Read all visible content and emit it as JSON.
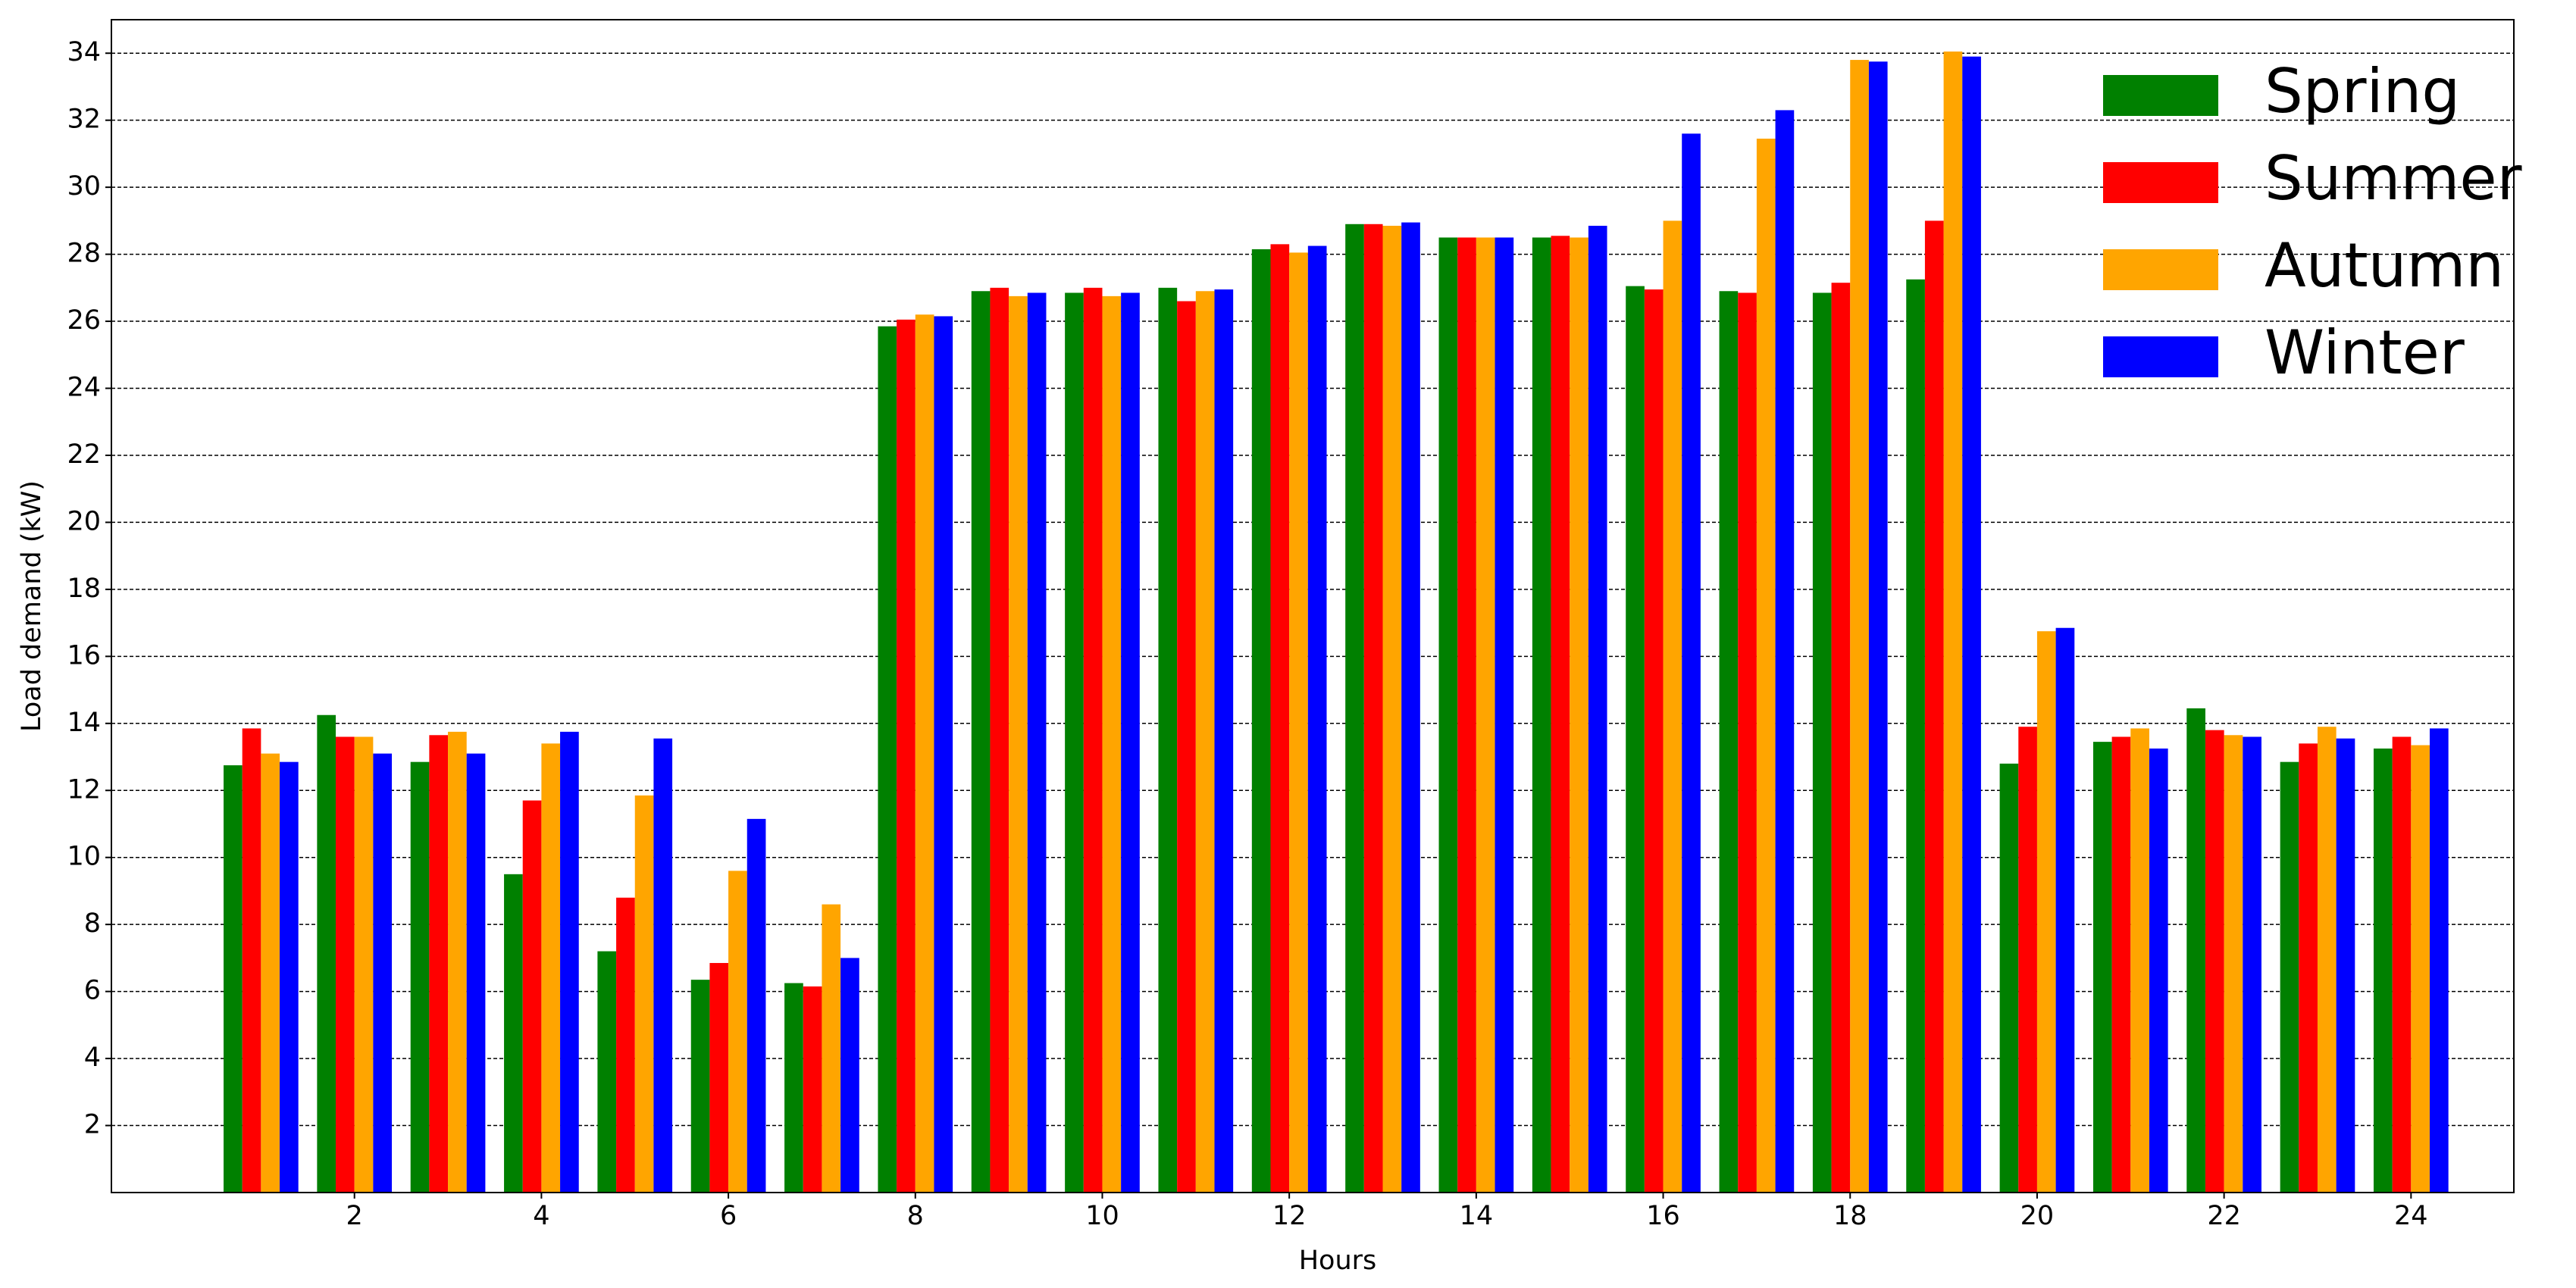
{
  "chart_data": {
    "type": "bar",
    "x_label": "Hours",
    "y_label": "Load demand (kW)",
    "x": [
      1,
      2,
      3,
      4,
      5,
      6,
      7,
      8,
      9,
      10,
      11,
      12,
      13,
      14,
      15,
      16,
      17,
      18,
      19,
      20,
      21,
      22,
      23,
      24
    ],
    "xlim": [
      -0.6,
      25.1
    ],
    "xticks": [
      2,
      4,
      6,
      8,
      10,
      12,
      14,
      16,
      18,
      20,
      22,
      24
    ],
    "ylim": [
      0,
      35
    ],
    "yticks": [
      2,
      4,
      6,
      8,
      10,
      12,
      14,
      16,
      18,
      20,
      22,
      24,
      26,
      28,
      30,
      32,
      34
    ],
    "grid": true,
    "legend": "upper right",
    "series": [
      {
        "name": "Spring",
        "color": "#008000",
        "values": [
          12.75,
          14.25,
          12.85,
          9.5,
          7.2,
          6.35,
          6.25,
          25.85,
          26.9,
          26.85,
          27.0,
          28.15,
          28.9,
          28.5,
          28.5,
          27.05,
          26.9,
          26.85,
          27.25,
          12.8,
          13.45,
          14.45,
          12.85,
          13.25
        ]
      },
      {
        "name": "Summer",
        "color": "#ff0000",
        "values": [
          13.85,
          13.6,
          13.65,
          11.7,
          8.8,
          6.85,
          6.15,
          26.05,
          27.0,
          27.0,
          26.6,
          28.3,
          28.9,
          28.5,
          28.55,
          26.95,
          26.85,
          27.15,
          29.0,
          13.9,
          13.6,
          13.8,
          13.4,
          13.6
        ]
      },
      {
        "name": "Autumn",
        "color": "#ffa500",
        "values": [
          13.1,
          13.6,
          13.75,
          13.4,
          11.85,
          9.6,
          8.6,
          26.2,
          26.75,
          26.75,
          26.9,
          28.05,
          28.85,
          28.5,
          28.5,
          29.0,
          31.45,
          33.8,
          34.05,
          16.75,
          13.85,
          13.65,
          13.9,
          13.35
        ]
      },
      {
        "name": "Winter",
        "color": "#0000ff",
        "values": [
          12.85,
          13.1,
          13.1,
          13.75,
          13.55,
          11.15,
          7.0,
          26.15,
          26.85,
          26.85,
          26.95,
          28.25,
          28.95,
          28.5,
          28.85,
          31.6,
          32.3,
          33.75,
          33.9,
          16.85,
          13.25,
          13.6,
          13.55,
          13.85
        ]
      }
    ]
  }
}
